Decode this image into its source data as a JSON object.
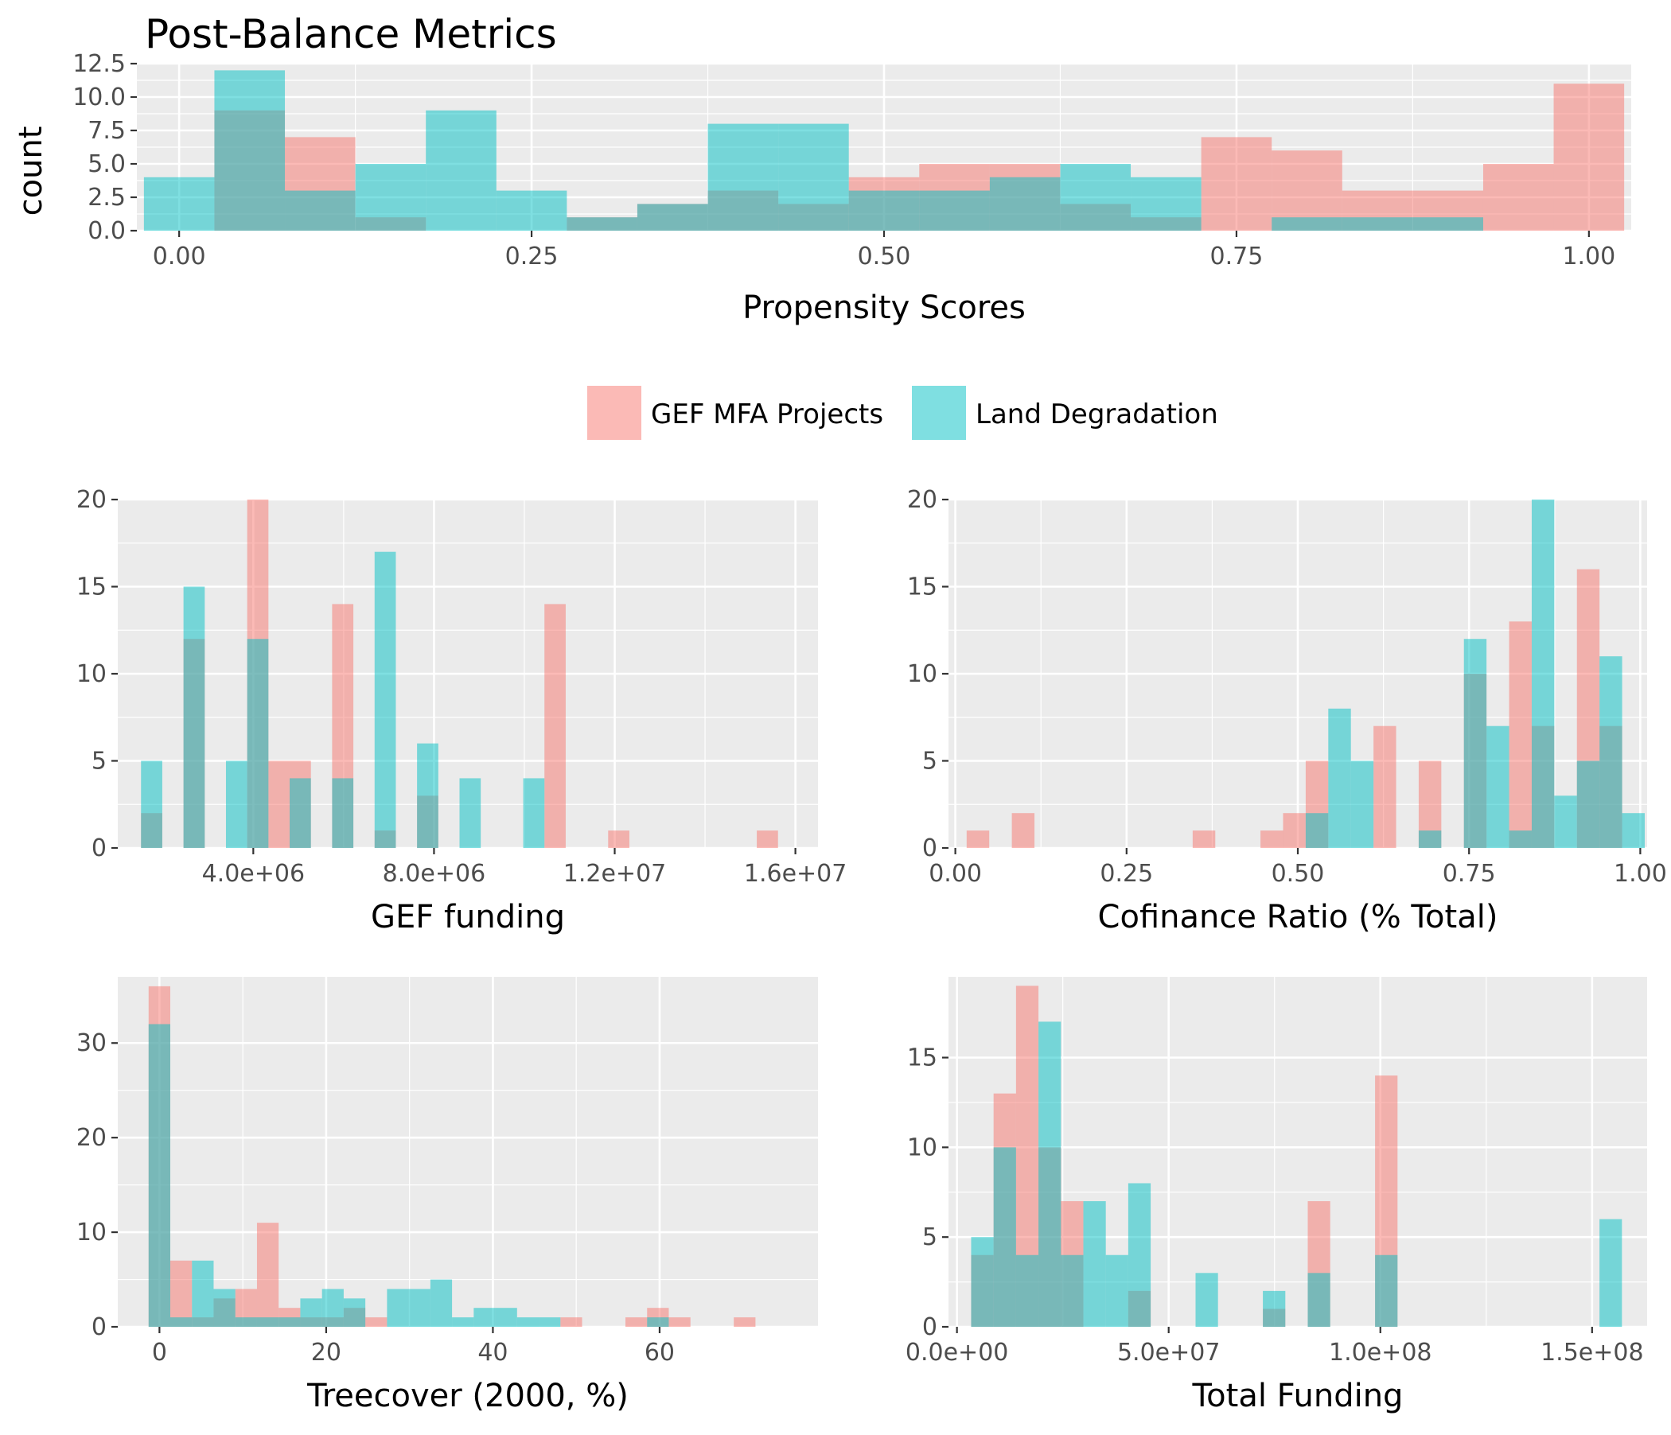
{
  "title": "Post-Balance Metrics",
  "colors": {
    "gef": "#F8766D",
    "ld": "#00BFC4",
    "panel": "#EBEBEB",
    "grid": "#FFFFFF"
  },
  "legend": {
    "position": "center",
    "items": [
      {
        "label": "GEF MFA Projects",
        "color": "#F8766D"
      },
      {
        "label": "Land Degradation",
        "color": "#00BFC4"
      }
    ]
  },
  "chart_data": [
    {
      "type": "histogram",
      "xlabel": "Propensity Scores",
      "ylabel": "count",
      "xlim": [
        -0.03,
        1.03
      ],
      "ylim": [
        0,
        12.5
      ],
      "xticks": [
        0,
        0.25,
        0.5,
        0.75,
        1.0
      ],
      "xtick_labels": [
        "0.00",
        "0.25",
        "0.50",
        "0.75",
        "1.00"
      ],
      "yticks": [
        0,
        2.5,
        5,
        7.5,
        10,
        12.5
      ],
      "ytick_labels": [
        "0.0",
        "2.5",
        "5.0",
        "7.5",
        "10.0",
        "12.5"
      ],
      "bin_width": 0.05,
      "bin_centers": [
        0,
        0.05,
        0.1,
        0.15,
        0.2,
        0.25,
        0.3,
        0.35,
        0.4,
        0.45,
        0.5,
        0.55,
        0.6,
        0.65,
        0.7,
        0.75,
        0.8,
        0.85,
        0.9,
        0.95,
        1.0
      ],
      "series": [
        {
          "name": "GEF MFA Projects",
          "values": [
            0,
            9,
            7,
            1,
            0,
            0,
            1,
            2,
            3,
            2,
            4,
            5,
            5,
            2,
            1,
            7,
            6,
            3,
            3,
            5,
            11
          ]
        },
        {
          "name": "Land Degradation",
          "values": [
            4,
            12,
            3,
            5,
            9,
            3,
            1,
            2,
            8,
            8,
            3,
            3,
            4,
            5,
            4,
            0,
            1,
            1,
            1,
            0,
            0
          ]
        }
      ]
    },
    {
      "type": "histogram",
      "xlabel": "GEF funding",
      "ylabel": "",
      "xlim": [
        1000000,
        16500000
      ],
      "ylim": [
        0,
        20
      ],
      "xticks": [
        4000000,
        8000000,
        12000000,
        16000000
      ],
      "xtick_labels": [
        "4.0e+06",
        "8.0e+06",
        "1.2e+07",
        "1.6e+07"
      ],
      "yticks": [
        0,
        5,
        10,
        15,
        20
      ],
      "ytick_labels": [
        "0",
        "5",
        "10",
        "15",
        "20"
      ],
      "bin_width": 470000,
      "bin_centers": [
        1750000,
        2220000,
        2690000,
        3160000,
        3630000,
        4100000,
        4570000,
        5040000,
        5510000,
        5980000,
        6450000,
        6920000,
        7390000,
        7860000,
        8330000,
        8800000,
        9270000,
        9740000,
        10210000,
        10680000,
        11150000,
        11620000,
        12090000,
        12560000,
        13030000,
        13500000,
        13970000,
        14440000,
        14910000,
        15380000
      ],
      "series": [
        {
          "name": "GEF MFA Projects",
          "values": [
            2,
            0,
            12,
            0,
            0,
            20,
            5,
            5,
            0,
            14,
            0,
            1,
            0,
            3,
            0,
            0,
            0,
            0,
            0,
            14,
            0,
            0,
            1,
            0,
            0,
            0,
            0,
            0,
            0,
            1
          ]
        },
        {
          "name": "Land Degradation",
          "values": [
            5,
            0,
            15,
            0,
            5,
            12,
            0,
            4,
            0,
            4,
            0,
            17,
            0,
            6,
            0,
            4,
            0,
            0,
            4,
            0,
            0,
            0,
            0,
            0,
            0,
            0,
            0,
            0,
            0,
            0
          ]
        }
      ]
    },
    {
      "type": "histogram",
      "xlabel": "Cofinance Ratio (% Total)",
      "ylabel": "",
      "xlim": [
        -0.01,
        1.01
      ],
      "ylim": [
        0,
        20
      ],
      "xticks": [
        0,
        0.25,
        0.5,
        0.75,
        1.0
      ],
      "xtick_labels": [
        "0.00",
        "0.25",
        "0.50",
        "0.75",
        "1.00"
      ],
      "yticks": [
        0,
        5,
        10,
        15,
        20
      ],
      "ytick_labels": [
        "0",
        "5",
        "10",
        "15",
        "20"
      ],
      "bin_width": 0.033,
      "bin_centers": [
        0.033,
        0.066,
        0.099,
        0.132,
        0.165,
        0.198,
        0.231,
        0.264,
        0.297,
        0.33,
        0.363,
        0.396,
        0.429,
        0.462,
        0.495,
        0.528,
        0.561,
        0.594,
        0.627,
        0.66,
        0.693,
        0.726,
        0.759,
        0.792,
        0.825,
        0.858,
        0.891,
        0.924,
        0.957,
        0.99
      ],
      "series": [
        {
          "name": "GEF MFA Projects",
          "values": [
            1,
            0,
            2,
            0,
            0,
            0,
            0,
            0,
            0,
            0,
            1,
            0,
            0,
            1,
            2,
            5,
            0,
            0,
            7,
            0,
            5,
            0,
            10,
            0,
            13,
            7,
            0,
            16,
            7,
            0
          ]
        },
        {
          "name": "Land Degradation",
          "values": [
            0,
            0,
            0,
            0,
            0,
            0,
            0,
            0,
            0,
            0,
            0,
            0,
            0,
            0,
            0,
            2,
            8,
            5,
            0,
            0,
            1,
            0,
            12,
            7,
            1,
            20,
            3,
            5,
            11,
            2
          ]
        }
      ]
    },
    {
      "type": "histogram",
      "xlabel": "Treecover (2000, %)",
      "ylabel": "",
      "xlim": [
        -5,
        79
      ],
      "ylim": [
        0,
        37
      ],
      "xticks": [
        0,
        20,
        40,
        60
      ],
      "xtick_labels": [
        "0",
        "20",
        "40",
        "60"
      ],
      "yticks": [
        0,
        10,
        20,
        30
      ],
      "ytick_labels": [
        "0",
        "10",
        "20",
        "30"
      ],
      "bin_width": 2.6,
      "bin_centers": [
        0,
        2.6,
        5.2,
        7.8,
        10.4,
        13.0,
        15.6,
        18.2,
        20.8,
        23.4,
        26.0,
        28.6,
        31.2,
        33.8,
        36.4,
        39.0,
        41.6,
        44.2,
        46.8,
        49.4,
        52.0,
        54.6,
        57.2,
        59.8,
        62.4,
        65.0,
        67.6,
        70.2,
        72.8
      ],
      "series": [
        {
          "name": "GEF MFA Projects",
          "values": [
            36,
            7,
            1,
            3,
            4,
            11,
            2,
            1,
            1,
            2,
            1,
            0,
            0,
            0,
            0,
            0,
            0,
            0,
            0,
            1,
            0,
            0,
            1,
            2,
            1,
            0,
            0,
            1,
            0
          ]
        },
        {
          "name": "Land Degradation",
          "values": [
            32,
            1,
            7,
            4,
            1,
            1,
            1,
            3,
            4,
            3,
            0,
            4,
            4,
            5,
            1,
            2,
            2,
            1,
            1,
            0,
            0,
            0,
            0,
            1,
            0,
            0,
            0,
            0,
            0
          ]
        }
      ]
    },
    {
      "type": "histogram",
      "xlabel": "Total Funding",
      "ylabel": "",
      "xlim": [
        -2000000,
        163000000
      ],
      "ylim": [
        0,
        19.5
      ],
      "xticks": [
        0,
        50000000,
        100000000,
        150000000
      ],
      "xtick_labels": [
        "0.0e+00",
        "5.0e+07",
        "1.0e+08",
        "1.5e+08"
      ],
      "yticks": [
        0,
        5,
        10,
        15
      ],
      "ytick_labels": [
        "0",
        "5",
        "10",
        "15"
      ],
      "bin_width": 5300000,
      "bin_centers": [
        6000000,
        11300000,
        16600000,
        21900000,
        27200000,
        32500000,
        37800000,
        43100000,
        48400000,
        53700000,
        59000000,
        64300000,
        69600000,
        74900000,
        80200000,
        85500000,
        90800000,
        96100000,
        101400000,
        106700000,
        112000000,
        117300000,
        122600000,
        127900000,
        133200000,
        138500000,
        143800000,
        149100000,
        154400000
      ],
      "series": [
        {
          "name": "GEF MFA Projects",
          "values": [
            4,
            13,
            19,
            10,
            7,
            0,
            0,
            2,
            0,
            0,
            0,
            0,
            0,
            1,
            0,
            7,
            0,
            0,
            14,
            0,
            0,
            0,
            0,
            0,
            0,
            0,
            0,
            0,
            0
          ]
        },
        {
          "name": "Land Degradation",
          "values": [
            5,
            10,
            4,
            17,
            4,
            7,
            4,
            8,
            0,
            0,
            3,
            0,
            0,
            2,
            0,
            3,
            0,
            0,
            4,
            0,
            0,
            0,
            0,
            0,
            0,
            0,
            0,
            0,
            6
          ]
        }
      ]
    }
  ]
}
